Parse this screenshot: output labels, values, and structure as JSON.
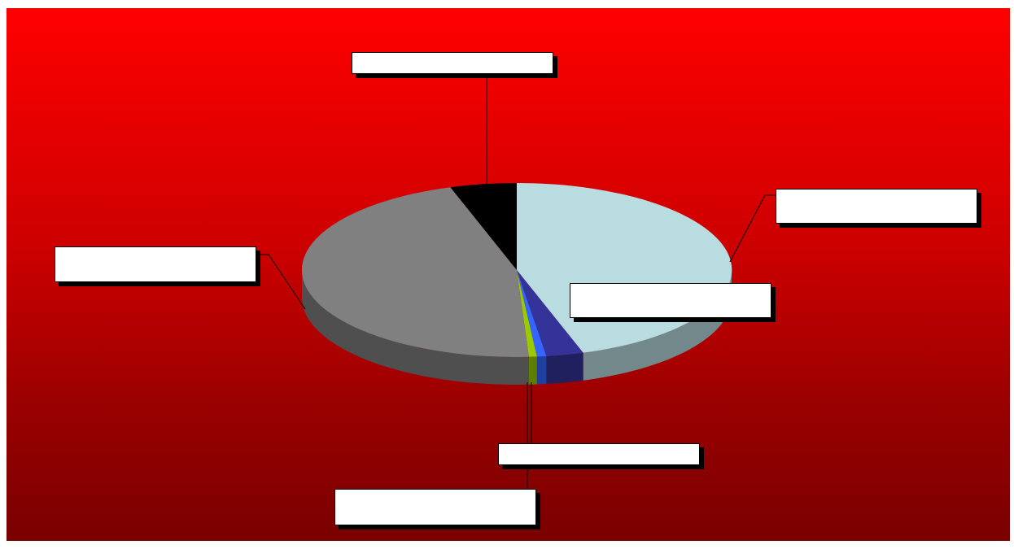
{
  "colors": {
    "background_top": "#ff0000",
    "background_bottom": "#7a0000",
    "label_fill": "#ffffff",
    "leader_line": "#000000"
  },
  "chart_data": {
    "type": "pie",
    "style": "3d",
    "title": "",
    "slices": [
      {
        "label": "",
        "value": 45.0,
        "color": "#b8dce0"
      },
      {
        "label": "",
        "value": 2.8,
        "color": "#333399"
      },
      {
        "label": "",
        "value": 0.7,
        "color": "#3366ff"
      },
      {
        "label": "",
        "value": 0.6,
        "color": "#99cc00"
      },
      {
        "label": "",
        "value": 45.9,
        "color": "#808080"
      },
      {
        "label": "",
        "value": 5.0,
        "color": "#000000"
      }
    ],
    "data_labels_visible": true,
    "legend": "none"
  }
}
